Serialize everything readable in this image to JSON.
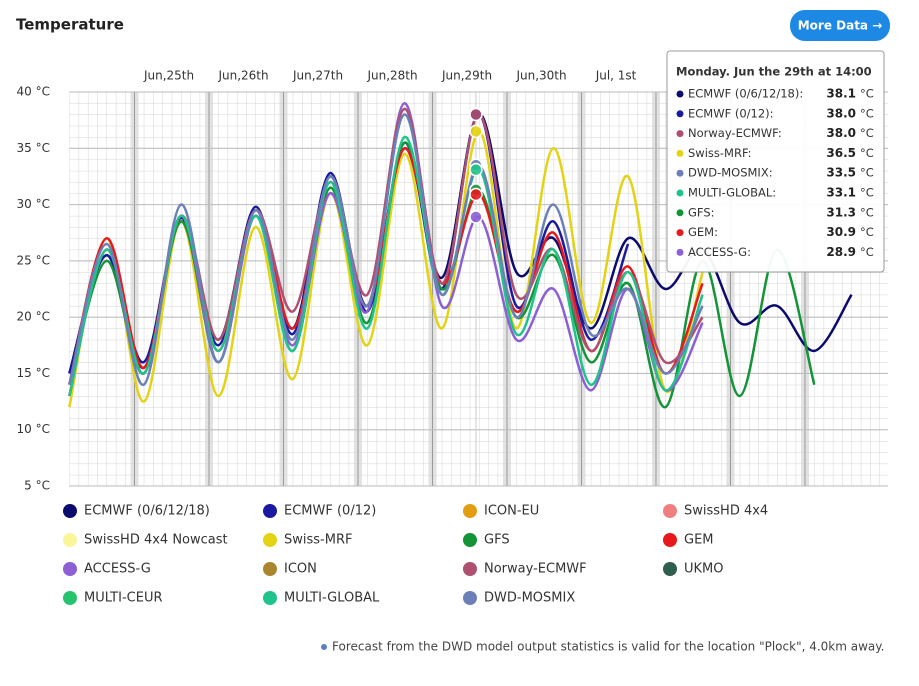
{
  "title": "Temperature",
  "button": "More Data →",
  "footnote": "Forecast from the DWD model output statistics is valid for the location \"Plock\", 4.0km away.",
  "chart_data": {
    "type": "line",
    "categories": [
      null,
      null,
      null,
      "Jun,25th",
      null,
      "Jun,26th",
      null,
      "Jun,27th",
      null,
      "Jun,28th",
      null,
      "Jun,29th",
      null,
      "Jun,30th",
      null,
      "Jul, 1st",
      null,
      null,
      null,
      null,
      null,
      null
    ],
    "ylim": [
      5,
      40
    ],
    "yticks": [
      {
        "value": 5,
        "label": "5 °C"
      },
      {
        "value": 10,
        "label": "10 °C"
      },
      {
        "value": 15,
        "label": "15 °C"
      },
      {
        "value": 20,
        "label": "20 °C"
      },
      {
        "value": 25,
        "label": "25 °C"
      },
      {
        "value": 30,
        "label": "30 °C"
      },
      {
        "value": 35,
        "label": "35 °C"
      },
      {
        "value": 40,
        "label": "40 °C"
      }
    ],
    "grid": true,
    "series": [
      {
        "name": "ECMWF (0/6/12/18)",
        "color": "#0b0b6e",
        "values": [
          15,
          25.5,
          15.5,
          28.5,
          18,
          29.5,
          19,
          32.5,
          21,
          35,
          23.5,
          38.1,
          24,
          27,
          19,
          27,
          22.5,
          26,
          19.5,
          21,
          17,
          22
        ]
      },
      {
        "name": "ECMWF (0/12)",
        "color": "#1a1aa0",
        "values": [
          15,
          25.5,
          16,
          28.8,
          17.5,
          29.8,
          18.5,
          32.8,
          20.5,
          35.5,
          22.5,
          38.0,
          21,
          28.5,
          18,
          26.5,
          null,
          null,
          null,
          null,
          null,
          null
        ]
      },
      {
        "name": "ICON-EU",
        "color": "#e39d12"
      },
      {
        "name": "SwissHD 4x4",
        "color": "#f08080"
      },
      {
        "name": "SwissHD 4x4 Nowcast",
        "color": "#fbf59a"
      },
      {
        "name": "Swiss-MRF",
        "color": "#e3d312",
        "values": [
          12,
          27,
          12.5,
          28.5,
          13,
          28,
          14.5,
          31,
          17.5,
          34.5,
          19,
          36.5,
          19,
          35,
          19.5,
          32.5,
          13.5,
          24,
          null,
          null,
          null,
          null
        ]
      },
      {
        "name": "GFS",
        "color": "#129437",
        "values": [
          14,
          25,
          15,
          28.5,
          16,
          29,
          17,
          31.5,
          19.5,
          35.5,
          22.5,
          31.3,
          20,
          25.5,
          16,
          23,
          12,
          25,
          13,
          26,
          14,
          null
        ]
      },
      {
        "name": "GEM",
        "color": "#e8191c",
        "values": [
          14,
          27,
          15.5,
          29,
          17,
          29.5,
          19,
          31,
          21,
          35,
          23,
          30.9,
          20.5,
          27.5,
          17,
          24.5,
          15,
          23,
          null,
          null,
          null,
          null
        ]
      },
      {
        "name": "ACCESS-G",
        "color": "#8c5fd4",
        "values": [
          13,
          26,
          15,
          29,
          16,
          29,
          17.5,
          31,
          20.5,
          39,
          21,
          28.9,
          18,
          22.5,
          13.5,
          22.5,
          13.5,
          19.5,
          null,
          null,
          null,
          null
        ]
      },
      {
        "name": "ICON",
        "color": "#a9852e"
      },
      {
        "name": "Norway-ECMWF",
        "color": "#b05070",
        "values": [
          13,
          26,
          15,
          29,
          18,
          29.5,
          20.5,
          32,
          22,
          38.5,
          23,
          38,
          22,
          26,
          17,
          24,
          16,
          20,
          null,
          null,
          null,
          null
        ]
      },
      {
        "name": "UKMO",
        "color": "#2e5e4e"
      },
      {
        "name": "MULTI-CEUR",
        "color": "#26c46e"
      },
      {
        "name": "MULTI-GLOBAL",
        "color": "#1fc48a",
        "values": [
          13,
          26,
          15,
          29,
          17,
          29,
          17,
          32,
          19,
          36,
          22,
          33.1,
          18.5,
          26,
          14,
          24,
          13.5,
          22,
          null,
          null,
          null,
          null
        ]
      },
      {
        "name": "DWD-MOSMIX",
        "color": "#6b80b8",
        "values": [
          14,
          26.5,
          14,
          30,
          16,
          29.5,
          18,
          32.5,
          21,
          38,
          22,
          33.5,
          20,
          30,
          18.5,
          22.5,
          15,
          21,
          null,
          null,
          null,
          null
        ]
      }
    ],
    "tooltip": {
      "title": "Monday. Jun the 29th at 14:00",
      "unit": "°C",
      "entries": [
        {
          "name": "ECMWF (0/6/12/18):",
          "color": "#0b0b6e",
          "value": 38.1
        },
        {
          "name": "ECMWF (0/12):",
          "color": "#1a1aa0",
          "value": {
            "value": 38,
            "label": "38.0"
          }
        },
        {
          "name": "Norway-ECMWF:",
          "color": "#b05070",
          "value": {
            "value": 38,
            "label": "38.0"
          }
        },
        {
          "name": "Swiss-MRF:",
          "color": "#e3d312",
          "value": 36.5
        },
        {
          "name": "DWD-MOSMIX:",
          "color": "#6b80b8",
          "value": 33.5
        },
        {
          "name": "MULTI-GLOBAL:",
          "color": "#1fc48a",
          "value": 33.1
        },
        {
          "name": "GFS:",
          "color": "#129437",
          "value": 31.3
        },
        {
          "name": "GEM:",
          "color": "#e8191c",
          "value": 30.9
        },
        {
          "name": "ACCESS-G:",
          "color": "#8c5fd4",
          "value": 28.9
        }
      ]
    }
  }
}
